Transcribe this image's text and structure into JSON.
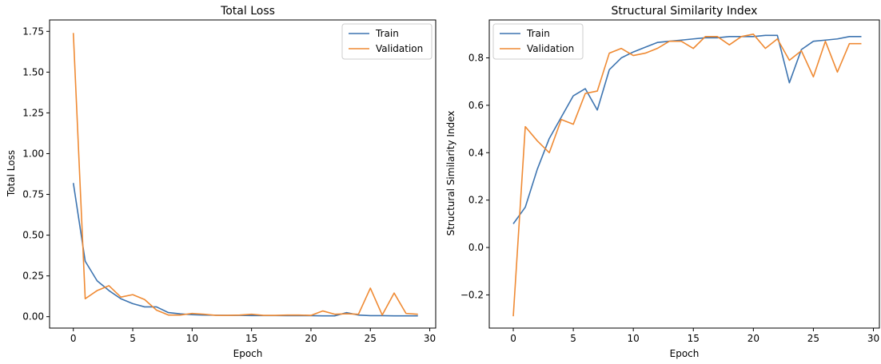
{
  "chart_data": [
    {
      "type": "line",
      "title": "Total Loss",
      "xlabel": "Epoch",
      "ylabel": "Total Loss",
      "xlim": [
        -2,
        30.5
      ],
      "ylim": [
        -0.07,
        1.82
      ],
      "xticks": [
        0,
        5,
        10,
        15,
        20,
        25,
        30
      ],
      "yticks": [
        0.0,
        0.25,
        0.5,
        0.75,
        1.0,
        1.25,
        1.5,
        1.75
      ],
      "ytick_labels": [
        "0.00",
        "0.25",
        "0.50",
        "0.75",
        "1.00",
        "1.25",
        "1.50",
        "1.75"
      ],
      "xtick_labels": [
        "0",
        "5",
        "10",
        "15",
        "20",
        "25",
        "30"
      ],
      "legend": "top-right",
      "grid": false,
      "x": [
        0,
        1,
        2,
        3,
        4,
        5,
        6,
        7,
        8,
        9,
        10,
        11,
        12,
        13,
        14,
        15,
        16,
        17,
        18,
        19,
        20,
        21,
        22,
        23,
        24,
        25,
        26,
        27,
        28,
        29
      ],
      "series": [
        {
          "name": "Train",
          "color": "#3d74b0",
          "values": [
            0.82,
            0.34,
            0.22,
            0.16,
            0.11,
            0.08,
            0.06,
            0.06,
            0.025,
            0.017,
            0.012,
            0.01,
            0.009,
            0.008,
            0.008,
            0.007,
            0.007,
            0.007,
            0.006,
            0.006,
            0.006,
            0.005,
            0.005,
            0.025,
            0.01,
            0.006,
            0.006,
            0.005,
            0.005,
            0.005
          ]
        },
        {
          "name": "Validation",
          "color": "#ef8a33",
          "values": [
            1.74,
            0.11,
            0.16,
            0.19,
            0.12,
            0.135,
            0.105,
            0.04,
            0.01,
            0.01,
            0.02,
            0.015,
            0.008,
            0.008,
            0.01,
            0.015,
            0.008,
            0.008,
            0.01,
            0.01,
            0.008,
            0.035,
            0.015,
            0.018,
            0.015,
            0.175,
            0.01,
            0.145,
            0.02,
            0.015
          ]
        }
      ]
    },
    {
      "type": "line",
      "title": "Structural Similarity Index",
      "xlabel": "Epoch",
      "ylabel": "Structural Similarity Index",
      "xlim": [
        -2,
        30.5
      ],
      "ylim": [
        -0.34,
        0.96
      ],
      "xticks": [
        0,
        5,
        10,
        15,
        20,
        25,
        30
      ],
      "yticks": [
        -0.2,
        0.0,
        0.2,
        0.4,
        0.6,
        0.8
      ],
      "ytick_labels": [
        "−0.2",
        "0.0",
        "0.2",
        "0.4",
        "0.6",
        "0.8"
      ],
      "xtick_labels": [
        "0",
        "5",
        "10",
        "15",
        "20",
        "25",
        "30"
      ],
      "legend": "top-left",
      "grid": false,
      "x": [
        0,
        1,
        2,
        3,
        4,
        5,
        6,
        7,
        8,
        9,
        10,
        11,
        12,
        13,
        14,
        15,
        16,
        17,
        18,
        19,
        20,
        21,
        22,
        23,
        24,
        25,
        26,
        27,
        28,
        29
      ],
      "series": [
        {
          "name": "Train",
          "color": "#3d74b0",
          "values": [
            0.1,
            0.17,
            0.33,
            0.46,
            0.55,
            0.64,
            0.67,
            0.58,
            0.75,
            0.8,
            0.825,
            0.845,
            0.865,
            0.87,
            0.875,
            0.88,
            0.885,
            0.885,
            0.89,
            0.89,
            0.89,
            0.895,
            0.895,
            0.695,
            0.835,
            0.87,
            0.875,
            0.88,
            0.89,
            0.89
          ]
        },
        {
          "name": "Validation",
          "color": "#ef8a33",
          "values": [
            -0.29,
            0.51,
            0.45,
            0.4,
            0.54,
            0.52,
            0.65,
            0.66,
            0.82,
            0.84,
            0.81,
            0.82,
            0.84,
            0.87,
            0.87,
            0.84,
            0.89,
            0.89,
            0.855,
            0.89,
            0.9,
            0.84,
            0.88,
            0.79,
            0.83,
            0.72,
            0.87,
            0.74,
            0.86,
            0.86
          ]
        }
      ]
    }
  ]
}
